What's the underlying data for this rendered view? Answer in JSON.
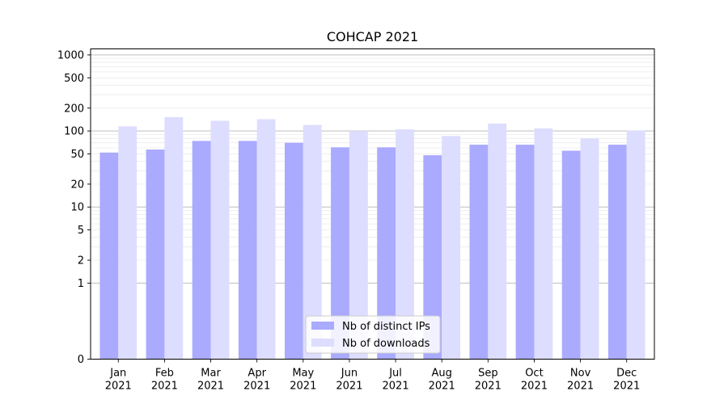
{
  "chart_data": {
    "type": "bar",
    "title": "COHCAP 2021",
    "xlabel": "",
    "ylabel": "",
    "y_scale": "symlog",
    "ylim": [
      0,
      1200
    ],
    "y_ticks": [
      0,
      1,
      2,
      5,
      10,
      20,
      50,
      100,
      200,
      500,
      1000
    ],
    "grid": true,
    "legend_position": "bottom-center",
    "categories": [
      [
        "Jan",
        "2021"
      ],
      [
        "Feb",
        "2021"
      ],
      [
        "Mar",
        "2021"
      ],
      [
        "Apr",
        "2021"
      ],
      [
        "May",
        "2021"
      ],
      [
        "Jun",
        "2021"
      ],
      [
        "Jul",
        "2021"
      ],
      [
        "Aug",
        "2021"
      ],
      [
        "Sep",
        "2021"
      ],
      [
        "Oct",
        "2021"
      ],
      [
        "Nov",
        "2021"
      ],
      [
        "Dec",
        "2021"
      ]
    ],
    "series": [
      {
        "name": "Nb of distinct IPs",
        "color": "#aaaaff",
        "values": [
          52,
          57,
          74,
          74,
          70,
          61,
          61,
          48,
          66,
          66,
          55,
          66
        ]
      },
      {
        "name": "Nb of downloads",
        "color": "#ddddff",
        "values": [
          115,
          152,
          136,
          143,
          120,
          100,
          105,
          86,
          125,
          108,
          80,
          101
        ]
      }
    ]
  }
}
